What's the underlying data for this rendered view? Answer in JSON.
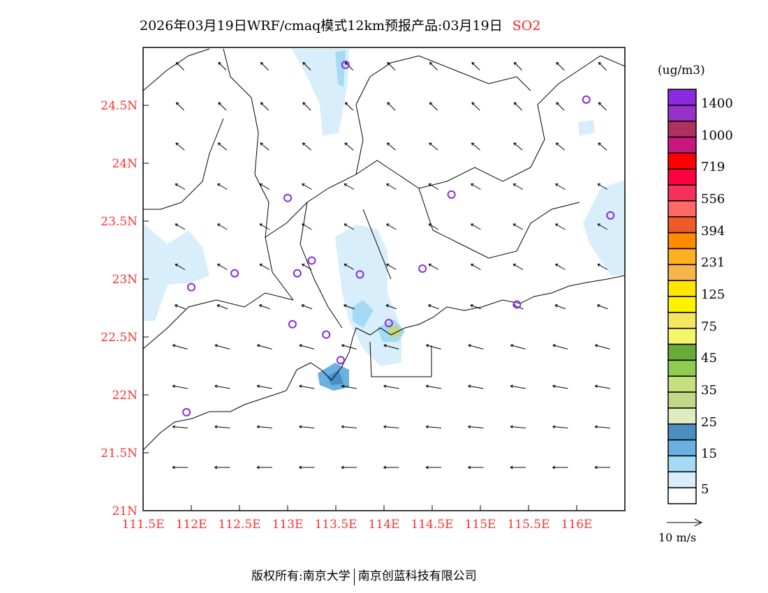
{
  "title": {
    "text": "2026年03月19日WRF/cmaq模式12km预报产品:03月19日",
    "species": "SO2"
  },
  "map": {
    "lon_range": [
      111.5,
      116.5
    ],
    "lat_range": [
      21,
      25
    ],
    "x_ticks": [
      "111.5E",
      "112E",
      "112.5E",
      "113E",
      "113.5E",
      "114E",
      "114.5E",
      "115E",
      "115.5E",
      "116E"
    ],
    "y_ticks": [
      "21N",
      "21.5N",
      "22N",
      "22.5N",
      "23N",
      "23.5N",
      "24N",
      "24.5N"
    ],
    "stations": [
      [
        113.6,
        24.85
      ],
      [
        116.1,
        24.55
      ],
      [
        113.0,
        23.7
      ],
      [
        114.7,
        23.73
      ],
      [
        116.35,
        23.55
      ],
      [
        112.0,
        22.93
      ],
      [
        112.45,
        23.05
      ],
      [
        113.1,
        23.05
      ],
      [
        113.25,
        23.16
      ],
      [
        113.75,
        23.04
      ],
      [
        114.4,
        23.09
      ],
      [
        115.38,
        22.78
      ],
      [
        113.05,
        22.61
      ],
      [
        113.4,
        22.52
      ],
      [
        114.05,
        22.62
      ],
      [
        113.55,
        22.3
      ],
      [
        111.95,
        21.85
      ]
    ],
    "wind_row_dirs_deg": [
      135,
      135,
      140,
      150,
      150,
      150,
      160,
      165,
      170,
      175,
      180
    ]
  },
  "legend": {
    "unit": "(ug/m3)",
    "colors": [
      "#8a2be0",
      "#9632c8",
      "#b03060",
      "#c8187e",
      "#ff0000",
      "#ff0040",
      "#f5305a",
      "#ff6868",
      "#ee5a2a",
      "#ff8c00",
      "#ffb020",
      "#f5b54a",
      "#ffe600",
      "#fff200",
      "#f5e660",
      "#f5f56a",
      "#6aaa38",
      "#90cc50",
      "#c5e080",
      "#c2d888",
      "#e0ecc0",
      "#4a8ec4",
      "#6ab0e0",
      "#a4daf4",
      "#d8eefa",
      "#ffffff"
    ],
    "labels": [
      "1400",
      "1000",
      "719",
      "556",
      "394",
      "231",
      "125",
      "75",
      "45",
      "35",
      "25",
      "15",
      "5"
    ],
    "wind_scale": "10 m/s"
  },
  "footer": {
    "left": "版权所有:南京大学",
    "right": "南京创蓝科技有限公司"
  }
}
